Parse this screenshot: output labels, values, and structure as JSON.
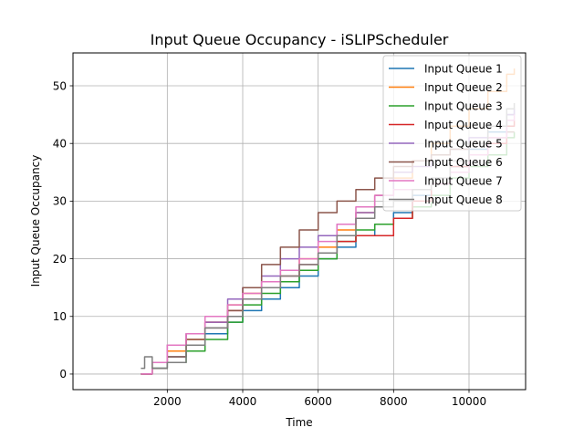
{
  "chart_data": {
    "type": "line",
    "title": "Input Queue Occupancy - iSLIPScheduler",
    "xlabel": "Time",
    "ylabel": "Input Queue Occupancy",
    "xlim": [
      -500,
      11500
    ],
    "ylim": [
      -2.7,
      55.7
    ],
    "xticks": [
      2000,
      4000,
      6000,
      8000,
      10000
    ],
    "xtick_labels": [
      "2000",
      "4000",
      "6000",
      "8000",
      "10000"
    ],
    "yticks": [
      0,
      10,
      20,
      30,
      40,
      50
    ],
    "ytick_labels": [
      "0",
      "10",
      "20",
      "30",
      "40",
      "50"
    ],
    "grid": true,
    "legend_position": "upper right",
    "series": [
      {
        "name": "Input Queue 1",
        "color": "#1f77b4",
        "points": [
          [
            1300,
            0
          ],
          [
            1600,
            1
          ],
          [
            2000,
            3
          ],
          [
            2500,
            5
          ],
          [
            3000,
            7
          ],
          [
            3600,
            9
          ],
          [
            4000,
            11
          ],
          [
            4500,
            13
          ],
          [
            5000,
            15
          ],
          [
            5500,
            17
          ],
          [
            6000,
            20
          ],
          [
            6500,
            22
          ],
          [
            7000,
            24
          ],
          [
            7500,
            26
          ],
          [
            8000,
            28
          ],
          [
            8500,
            31
          ],
          [
            9000,
            33
          ],
          [
            9500,
            36
          ],
          [
            10000,
            39
          ],
          [
            10500,
            42
          ],
          [
            11000,
            45
          ],
          [
            11200,
            46
          ]
        ]
      },
      {
        "name": "Input Queue 2",
        "color": "#ff7f0e",
        "points": [
          [
            1300,
            0
          ],
          [
            1600,
            2
          ],
          [
            2000,
            4
          ],
          [
            2500,
            6
          ],
          [
            3000,
            9
          ],
          [
            3600,
            12
          ],
          [
            4000,
            14
          ],
          [
            4500,
            16
          ],
          [
            5000,
            18
          ],
          [
            5500,
            20
          ],
          [
            6000,
            22
          ],
          [
            6500,
            25
          ],
          [
            7000,
            28
          ],
          [
            7500,
            31
          ],
          [
            8000,
            34
          ],
          [
            8500,
            37
          ],
          [
            9000,
            40
          ],
          [
            9500,
            43
          ],
          [
            10000,
            46
          ],
          [
            10500,
            49
          ],
          [
            11000,
            52
          ],
          [
            11200,
            53
          ]
        ]
      },
      {
        "name": "Input Queue 3",
        "color": "#2ca02c",
        "points": [
          [
            1300,
            0
          ],
          [
            1600,
            1
          ],
          [
            2000,
            2
          ],
          [
            2500,
            4
          ],
          [
            3000,
            6
          ],
          [
            3600,
            9
          ],
          [
            4000,
            12
          ],
          [
            4500,
            14
          ],
          [
            5000,
            16
          ],
          [
            5500,
            18
          ],
          [
            6000,
            20
          ],
          [
            6500,
            23
          ],
          [
            7000,
            25
          ],
          [
            7500,
            26
          ],
          [
            8000,
            27
          ],
          [
            8500,
            29
          ],
          [
            9000,
            31
          ],
          [
            9500,
            34
          ],
          [
            10000,
            36
          ],
          [
            10500,
            38
          ],
          [
            11000,
            41
          ],
          [
            11200,
            42
          ]
        ]
      },
      {
        "name": "Input Queue 4",
        "color": "#d62728",
        "points": [
          [
            1300,
            0
          ],
          [
            1600,
            2
          ],
          [
            2000,
            5
          ],
          [
            2500,
            7
          ],
          [
            3000,
            9
          ],
          [
            3600,
            11
          ],
          [
            4000,
            13
          ],
          [
            4500,
            15
          ],
          [
            5000,
            17
          ],
          [
            5500,
            19
          ],
          [
            6000,
            21
          ],
          [
            6500,
            23
          ],
          [
            7000,
            24
          ],
          [
            7500,
            24
          ],
          [
            8000,
            27
          ],
          [
            8500,
            30
          ],
          [
            9000,
            33
          ],
          [
            9500,
            36
          ],
          [
            10000,
            38
          ],
          [
            10500,
            40
          ],
          [
            11000,
            43
          ],
          [
            11200,
            44
          ]
        ]
      },
      {
        "name": "Input Queue 5",
        "color": "#9467bd",
        "points": [
          [
            1300,
            0
          ],
          [
            1600,
            2
          ],
          [
            2000,
            5
          ],
          [
            2500,
            7
          ],
          [
            3000,
            9
          ],
          [
            3600,
            13
          ],
          [
            4000,
            15
          ],
          [
            4500,
            17
          ],
          [
            5000,
            20
          ],
          [
            5500,
            22
          ],
          [
            6000,
            24
          ],
          [
            6500,
            26
          ],
          [
            7000,
            28
          ],
          [
            7500,
            31
          ],
          [
            8000,
            35
          ],
          [
            8500,
            36
          ],
          [
            9000,
            38
          ],
          [
            9500,
            39
          ],
          [
            10000,
            41
          ],
          [
            10500,
            43
          ],
          [
            11000,
            45
          ],
          [
            11200,
            46
          ]
        ]
      },
      {
        "name": "Input Queue 6",
        "color": "#8c564b",
        "points": [
          [
            1300,
            0
          ],
          [
            1600,
            1
          ],
          [
            2000,
            3
          ],
          [
            2500,
            6
          ],
          [
            3000,
            8
          ],
          [
            3600,
            11
          ],
          [
            4000,
            15
          ],
          [
            4500,
            19
          ],
          [
            5000,
            22
          ],
          [
            5500,
            25
          ],
          [
            6000,
            28
          ],
          [
            6500,
            30
          ],
          [
            7000,
            32
          ],
          [
            7500,
            34
          ],
          [
            8000,
            36
          ],
          [
            8500,
            37
          ],
          [
            9000,
            38
          ],
          [
            9500,
            39
          ],
          [
            10000,
            40
          ],
          [
            10500,
            41
          ],
          [
            11000,
            42
          ],
          [
            11200,
            42
          ]
        ]
      },
      {
        "name": "Input Queue 7",
        "color": "#e377c2",
        "points": [
          [
            1300,
            0
          ],
          [
            1600,
            2
          ],
          [
            2000,
            5
          ],
          [
            2500,
            7
          ],
          [
            3000,
            10
          ],
          [
            3600,
            12
          ],
          [
            4000,
            14
          ],
          [
            4500,
            16
          ],
          [
            5000,
            18
          ],
          [
            5500,
            20
          ],
          [
            6000,
            23
          ],
          [
            6500,
            26
          ],
          [
            7000,
            29
          ],
          [
            7500,
            31
          ],
          [
            8000,
            32
          ],
          [
            8500,
            32
          ],
          [
            9000,
            33
          ],
          [
            9500,
            35
          ],
          [
            10000,
            38
          ],
          [
            10500,
            41
          ],
          [
            11000,
            44
          ],
          [
            11200,
            45
          ]
        ]
      },
      {
        "name": "Input Queue 8",
        "color": "#7f7f7f",
        "points": [
          [
            1300,
            1
          ],
          [
            1400,
            3
          ],
          [
            1600,
            1
          ],
          [
            2000,
            2
          ],
          [
            2500,
            5
          ],
          [
            3000,
            8
          ],
          [
            3600,
            10
          ],
          [
            4000,
            13
          ],
          [
            4500,
            15
          ],
          [
            5000,
            17
          ],
          [
            5500,
            19
          ],
          [
            6000,
            21
          ],
          [
            6500,
            24
          ],
          [
            7000,
            27
          ],
          [
            7500,
            29
          ],
          [
            8000,
            30
          ],
          [
            8500,
            32
          ],
          [
            9000,
            34
          ],
          [
            9500,
            37
          ],
          [
            10000,
            40
          ],
          [
            10500,
            43
          ],
          [
            11000,
            46
          ],
          [
            11200,
            47
          ]
        ]
      }
    ]
  }
}
